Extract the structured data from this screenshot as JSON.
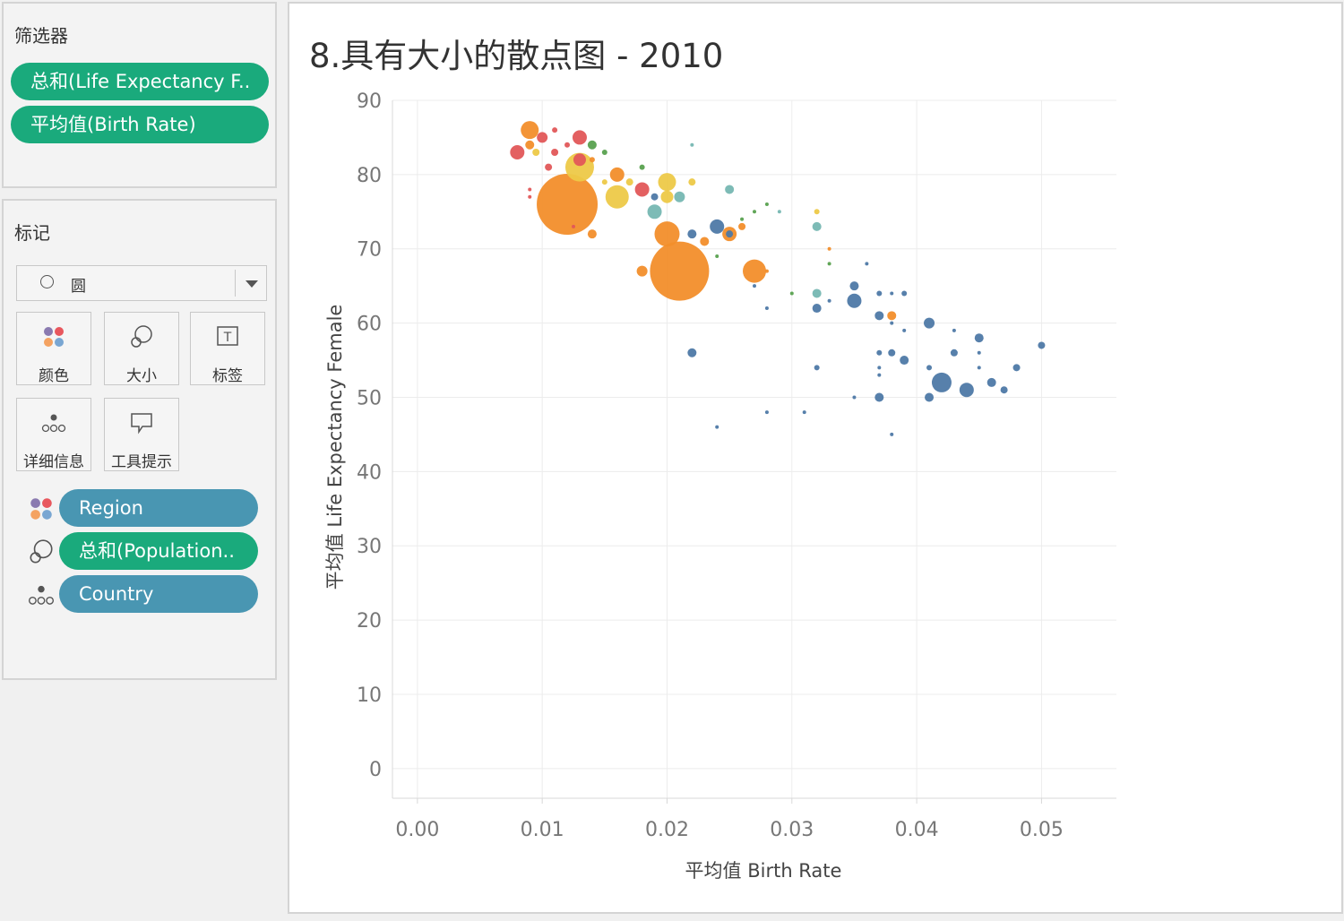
{
  "filters": {
    "title": "筛选器",
    "pills": [
      {
        "label": "总和(Life Expectancy F.."
      },
      {
        "label": "平均值(Birth Rate)"
      }
    ]
  },
  "marks": {
    "title": "标记",
    "mark_type": "圆",
    "cards": [
      {
        "label": "颜色",
        "icon": "color-icon"
      },
      {
        "label": "大小",
        "icon": "size-icon"
      },
      {
        "label": "标签",
        "icon": "label-icon"
      },
      {
        "label": "详细信息",
        "icon": "detail-icon"
      },
      {
        "label": "工具提示",
        "icon": "tooltip-icon"
      }
    ],
    "encodings": [
      {
        "label": "Region",
        "icon": "color-icon"
      },
      {
        "label": "总和(Population..",
        "icon": "size-icon"
      },
      {
        "label": "Country",
        "icon": "detail-icon"
      }
    ]
  },
  "chart": {
    "title": "8.具有大小的散点图 - 2010"
  },
  "chart_data": {
    "type": "scatter",
    "title": "8.具有大小的散点图 - 2010",
    "xlabel": "平均值 Birth Rate",
    "ylabel": "平均值 Life Expectancy Female",
    "xlim": [
      -0.002,
      0.056
    ],
    "ylim": [
      -4,
      90
    ],
    "xticks": [
      "0.00",
      "0.01",
      "0.02",
      "0.03",
      "0.04",
      "0.05"
    ],
    "yticks": [
      "0",
      "10",
      "20",
      "30",
      "40",
      "50",
      "60",
      "70",
      "80",
      "90"
    ],
    "grid": true,
    "colors": {
      "orange": "#f28e2b",
      "red": "#e15759",
      "yellow": "#edc948",
      "teal": "#76b7b2",
      "blue": "#4e79a7",
      "green": "#59a14f"
    },
    "points": [
      {
        "x": 0.012,
        "y": 76,
        "r": 34,
        "c": "orange"
      },
      {
        "x": 0.021,
        "y": 67,
        "r": 33,
        "c": "orange"
      },
      {
        "x": 0.02,
        "y": 72,
        "r": 14,
        "c": "orange"
      },
      {
        "x": 0.027,
        "y": 67,
        "r": 13,
        "c": "orange"
      },
      {
        "x": 0.009,
        "y": 86,
        "r": 10,
        "c": "orange"
      },
      {
        "x": 0.013,
        "y": 81,
        "r": 16,
        "c": "yellow"
      },
      {
        "x": 0.016,
        "y": 77,
        "r": 13,
        "c": "yellow"
      },
      {
        "x": 0.02,
        "y": 79,
        "r": 10,
        "c": "yellow"
      },
      {
        "x": 0.016,
        "y": 80,
        "r": 8,
        "c": "orange"
      },
      {
        "x": 0.018,
        "y": 78,
        "r": 8,
        "c": "red"
      },
      {
        "x": 0.008,
        "y": 83,
        "r": 8,
        "c": "red"
      },
      {
        "x": 0.013,
        "y": 85,
        "r": 8,
        "c": "red"
      },
      {
        "x": 0.013,
        "y": 82,
        "r": 7,
        "c": "red"
      },
      {
        "x": 0.01,
        "y": 85,
        "r": 6,
        "c": "red"
      },
      {
        "x": 0.009,
        "y": 84,
        "r": 5,
        "c": "orange"
      },
      {
        "x": 0.0095,
        "y": 83,
        "r": 4,
        "c": "yellow"
      },
      {
        "x": 0.0105,
        "y": 81,
        "r": 4,
        "c": "red"
      },
      {
        "x": 0.011,
        "y": 83,
        "r": 4,
        "c": "red"
      },
      {
        "x": 0.012,
        "y": 84,
        "r": 3,
        "c": "red"
      },
      {
        "x": 0.011,
        "y": 86,
        "r": 3,
        "c": "red"
      },
      {
        "x": 0.014,
        "y": 84,
        "r": 5,
        "c": "green"
      },
      {
        "x": 0.015,
        "y": 83,
        "r": 3,
        "c": "green"
      },
      {
        "x": 0.014,
        "y": 82,
        "r": 3,
        "c": "orange"
      },
      {
        "x": 0.015,
        "y": 79,
        "r": 3,
        "c": "yellow"
      },
      {
        "x": 0.017,
        "y": 79,
        "r": 4,
        "c": "yellow"
      },
      {
        "x": 0.018,
        "y": 81,
        "r": 3,
        "c": "green"
      },
      {
        "x": 0.019,
        "y": 77,
        "r": 4,
        "c": "blue"
      },
      {
        "x": 0.02,
        "y": 77,
        "r": 7,
        "c": "yellow"
      },
      {
        "x": 0.021,
        "y": 77,
        "r": 6,
        "c": "teal"
      },
      {
        "x": 0.019,
        "y": 75,
        "r": 8,
        "c": "teal"
      },
      {
        "x": 0.022,
        "y": 79,
        "r": 4,
        "c": "yellow"
      },
      {
        "x": 0.022,
        "y": 84,
        "r": 2,
        "c": "teal"
      },
      {
        "x": 0.014,
        "y": 72,
        "r": 5,
        "c": "orange"
      },
      {
        "x": 0.0125,
        "y": 73,
        "r": 2,
        "c": "red"
      },
      {
        "x": 0.009,
        "y": 77,
        "r": 2,
        "c": "red"
      },
      {
        "x": 0.009,
        "y": 78,
        "r": 2,
        "c": "red"
      },
      {
        "x": 0.018,
        "y": 67,
        "r": 6,
        "c": "orange"
      },
      {
        "x": 0.022,
        "y": 72,
        "r": 5,
        "c": "blue"
      },
      {
        "x": 0.023,
        "y": 71,
        "r": 5,
        "c": "orange"
      },
      {
        "x": 0.024,
        "y": 73,
        "r": 8,
        "c": "blue"
      },
      {
        "x": 0.025,
        "y": 72,
        "r": 8,
        "c": "orange"
      },
      {
        "x": 0.025,
        "y": 72,
        "r": 4,
        "c": "blue"
      },
      {
        "x": 0.026,
        "y": 73,
        "r": 4,
        "c": "orange"
      },
      {
        "x": 0.025,
        "y": 78,
        "r": 5,
        "c": "teal"
      },
      {
        "x": 0.022,
        "y": 56,
        "r": 5,
        "c": "blue"
      },
      {
        "x": 0.024,
        "y": 46,
        "r": 2,
        "c": "blue"
      },
      {
        "x": 0.026,
        "y": 74,
        "r": 2,
        "c": "green"
      },
      {
        "x": 0.027,
        "y": 75,
        "r": 2,
        "c": "green"
      },
      {
        "x": 0.028,
        "y": 76,
        "r": 2,
        "c": "green"
      },
      {
        "x": 0.029,
        "y": 75,
        "r": 2,
        "c": "teal"
      },
      {
        "x": 0.028,
        "y": 67,
        "r": 2,
        "c": "orange"
      },
      {
        "x": 0.027,
        "y": 65,
        "r": 2,
        "c": "blue"
      },
      {
        "x": 0.028,
        "y": 62,
        "r": 2,
        "c": "blue"
      },
      {
        "x": 0.03,
        "y": 64,
        "r": 2,
        "c": "green"
      },
      {
        "x": 0.024,
        "y": 69,
        "r": 2,
        "c": "green"
      },
      {
        "x": 0.032,
        "y": 75,
        "r": 3,
        "c": "yellow"
      },
      {
        "x": 0.032,
        "y": 73,
        "r": 5,
        "c": "teal"
      },
      {
        "x": 0.033,
        "y": 70,
        "r": 2,
        "c": "orange"
      },
      {
        "x": 0.033,
        "y": 68,
        "r": 2,
        "c": "green"
      },
      {
        "x": 0.032,
        "y": 64,
        "r": 5,
        "c": "teal"
      },
      {
        "x": 0.032,
        "y": 62,
        "r": 5,
        "c": "blue"
      },
      {
        "x": 0.033,
        "y": 63,
        "r": 2,
        "c": "blue"
      },
      {
        "x": 0.035,
        "y": 63,
        "r": 8,
        "c": "blue"
      },
      {
        "x": 0.035,
        "y": 65,
        "r": 5,
        "c": "blue"
      },
      {
        "x": 0.036,
        "y": 68,
        "r": 2,
        "c": "blue"
      },
      {
        "x": 0.037,
        "y": 64,
        "r": 3,
        "c": "blue"
      },
      {
        "x": 0.038,
        "y": 64,
        "r": 2,
        "c": "blue"
      },
      {
        "x": 0.039,
        "y": 64,
        "r": 3,
        "c": "blue"
      },
      {
        "x": 0.037,
        "y": 61,
        "r": 5,
        "c": "blue"
      },
      {
        "x": 0.038,
        "y": 61,
        "r": 5,
        "c": "orange"
      },
      {
        "x": 0.038,
        "y": 60,
        "r": 2,
        "c": "blue"
      },
      {
        "x": 0.039,
        "y": 59,
        "r": 2,
        "c": "blue"
      },
      {
        "x": 0.041,
        "y": 60,
        "r": 6,
        "c": "blue"
      },
      {
        "x": 0.043,
        "y": 59,
        "r": 2,
        "c": "blue"
      },
      {
        "x": 0.045,
        "y": 58,
        "r": 5,
        "c": "blue"
      },
      {
        "x": 0.05,
        "y": 57,
        "r": 4,
        "c": "blue"
      },
      {
        "x": 0.037,
        "y": 56,
        "r": 3,
        "c": "blue"
      },
      {
        "x": 0.038,
        "y": 56,
        "r": 4,
        "c": "blue"
      },
      {
        "x": 0.039,
        "y": 55,
        "r": 5,
        "c": "blue"
      },
      {
        "x": 0.043,
        "y": 56,
        "r": 4,
        "c": "blue"
      },
      {
        "x": 0.045,
        "y": 56,
        "r": 2,
        "c": "blue"
      },
      {
        "x": 0.032,
        "y": 54,
        "r": 3,
        "c": "blue"
      },
      {
        "x": 0.037,
        "y": 54,
        "r": 2,
        "c": "blue"
      },
      {
        "x": 0.037,
        "y": 53,
        "r": 2,
        "c": "blue"
      },
      {
        "x": 0.041,
        "y": 54,
        "r": 3,
        "c": "blue"
      },
      {
        "x": 0.045,
        "y": 54,
        "r": 2,
        "c": "blue"
      },
      {
        "x": 0.048,
        "y": 54,
        "r": 4,
        "c": "blue"
      },
      {
        "x": 0.042,
        "y": 52,
        "r": 11,
        "c": "blue"
      },
      {
        "x": 0.044,
        "y": 51,
        "r": 8,
        "c": "blue"
      },
      {
        "x": 0.046,
        "y": 52,
        "r": 5,
        "c": "blue"
      },
      {
        "x": 0.047,
        "y": 51,
        "r": 4,
        "c": "blue"
      },
      {
        "x": 0.041,
        "y": 50,
        "r": 5,
        "c": "blue"
      },
      {
        "x": 0.037,
        "y": 50,
        "r": 5,
        "c": "blue"
      },
      {
        "x": 0.035,
        "y": 50,
        "r": 2,
        "c": "blue"
      },
      {
        "x": 0.028,
        "y": 48,
        "r": 2,
        "c": "blue"
      },
      {
        "x": 0.031,
        "y": 48,
        "r": 2,
        "c": "blue"
      },
      {
        "x": 0.038,
        "y": 45,
        "r": 2,
        "c": "blue"
      }
    ]
  }
}
